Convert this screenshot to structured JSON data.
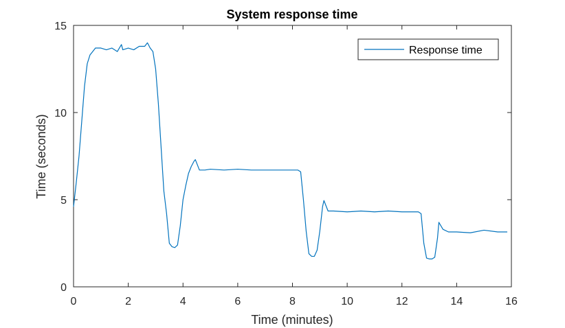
{
  "chart_data": {
    "type": "line",
    "title": "System response time",
    "xlabel": "Time (minutes)",
    "ylabel": "Time (seconds)",
    "xlim": [
      0,
      16
    ],
    "ylim": [
      0,
      15
    ],
    "xticks": [
      0,
      2,
      4,
      6,
      8,
      10,
      12,
      14,
      16
    ],
    "yticks": [
      0,
      5,
      10,
      15
    ],
    "x_tick_labels": [
      "0",
      "2",
      "4",
      "6",
      "8",
      "10",
      "12",
      "14",
      "16"
    ],
    "y_tick_labels": [
      "0",
      "5",
      "10",
      "15"
    ],
    "grid": false,
    "legend_position": "top-right",
    "series": [
      {
        "name": "Response time",
        "color": "#0072BD",
        "x": [
          0,
          0.1,
          0.2,
          0.3,
          0.4,
          0.5,
          0.6,
          0.7,
          0.8,
          1.0,
          1.2,
          1.4,
          1.6,
          1.75,
          1.8,
          2.0,
          2.2,
          2.4,
          2.6,
          2.7,
          2.8,
          2.9,
          3.0,
          3.1,
          3.2,
          3.3,
          3.4,
          3.5,
          3.6,
          3.7,
          3.8,
          3.9,
          4.0,
          4.1,
          4.2,
          4.3,
          4.4,
          4.45,
          4.6,
          4.8,
          5.0,
          5.5,
          6.0,
          6.5,
          7.0,
          7.5,
          8.0,
          8.2,
          8.3,
          8.4,
          8.5,
          8.6,
          8.7,
          8.8,
          8.9,
          9.0,
          9.1,
          9.15,
          9.3,
          9.5,
          10.0,
          10.5,
          11.0,
          11.5,
          12.0,
          12.5,
          12.6,
          12.7,
          12.8,
          12.9,
          13.0,
          13.1,
          13.2,
          13.3,
          13.35,
          13.5,
          13.7,
          14.0,
          14.5,
          15.0,
          15.5,
          15.85
        ],
        "y": [
          4.6,
          6.0,
          7.5,
          9.5,
          11.5,
          12.8,
          13.3,
          13.5,
          13.7,
          13.7,
          13.6,
          13.7,
          13.5,
          13.9,
          13.6,
          13.7,
          13.6,
          13.8,
          13.8,
          14.0,
          13.7,
          13.5,
          12.5,
          10.5,
          8.0,
          5.5,
          4.2,
          2.5,
          2.3,
          2.25,
          2.4,
          3.5,
          5.0,
          5.8,
          6.5,
          6.9,
          7.2,
          7.3,
          6.7,
          6.7,
          6.75,
          6.7,
          6.75,
          6.7,
          6.7,
          6.7,
          6.7,
          6.7,
          6.6,
          5.0,
          3.2,
          1.9,
          1.75,
          1.75,
          2.1,
          3.2,
          4.6,
          4.95,
          4.35,
          4.35,
          4.3,
          4.35,
          4.3,
          4.35,
          4.3,
          4.3,
          4.3,
          4.2,
          2.5,
          1.65,
          1.6,
          1.6,
          1.7,
          2.8,
          3.7,
          3.3,
          3.15,
          3.15,
          3.1,
          3.25,
          3.15,
          3.15
        ]
      }
    ]
  }
}
